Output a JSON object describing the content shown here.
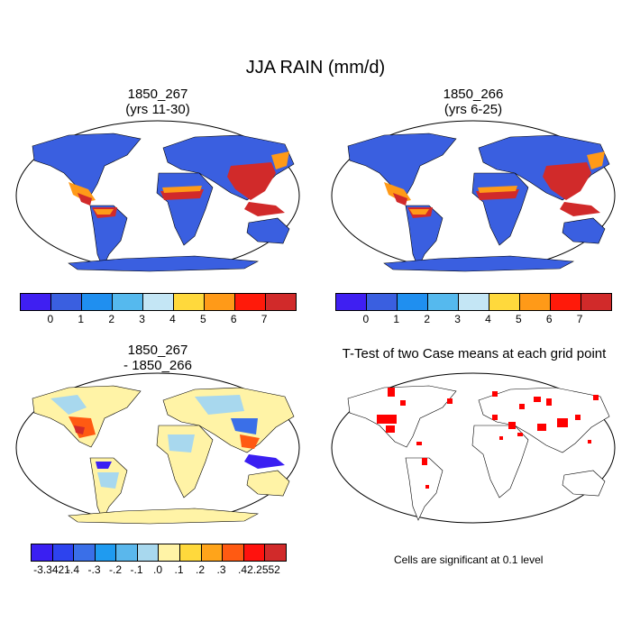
{
  "figure": {
    "title": "JJA RAIN (mm/d)"
  },
  "panels": {
    "top_left": {
      "title_line1": "1850_267",
      "title_line2": "(yrs 11-30)"
    },
    "top_right": {
      "title_line1": "1850_266",
      "title_line2": "(yrs 6-25)"
    },
    "bottom_left": {
      "title_line1": "1850_267",
      "title_line2": "- 1850_266"
    },
    "bottom_right": {
      "title": "T-Test of two Case means at each grid point",
      "note": "Cells are significant at 0.1 level"
    }
  },
  "colorbars": {
    "rain": {
      "labels": [
        "0",
        "1",
        "2",
        "3",
        "4",
        "5",
        "6",
        "7"
      ],
      "colors": [
        "#3f1ff2",
        "#3a5fe0",
        "#1f8ff0",
        "#55b9ee",
        "#c4e6f5",
        "#ffd93c",
        "#ff9a18",
        "#ff1a0a",
        "#d12a2a"
      ]
    },
    "diff": {
      "labels": [
        "-3.3421",
        "-.4",
        "-.3",
        "-.2",
        "-.1",
        ".0",
        ".1",
        ".2",
        ".3",
        ".4",
        "2.2552"
      ],
      "colors": [
        "#3a1ff2",
        "#2d43ee",
        "#3a6fe8",
        "#1f9bf0",
        "#5ab7ec",
        "#a8d8ee",
        "#fff3a6",
        "#ffd93c",
        "#ffa41a",
        "#ff5a12",
        "#ff120e",
        "#d12a2a"
      ]
    }
  },
  "map_colors": {
    "land_wet": "#3a5fe0",
    "tropics_heavy": "#d12a2a",
    "tropics_heavy2": "#ff1a0a",
    "monsoon_mid": "#ff9a18",
    "light": "#ffd93c",
    "diff_base": "#fff3a6",
    "diff_neg": "#a8d8ee",
    "signif": "#ff0000"
  }
}
